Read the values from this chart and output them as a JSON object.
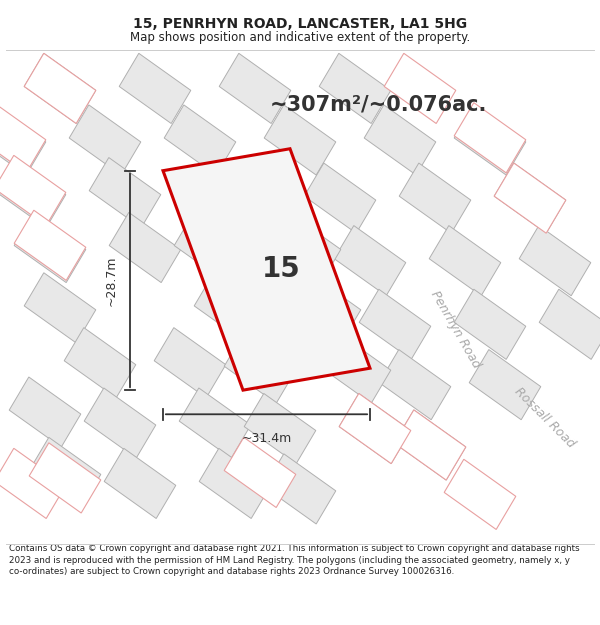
{
  "title_line1": "15, PENRHYN ROAD, LANCASTER, LA1 5HG",
  "title_line2": "Map shows position and indicative extent of the property.",
  "area_text": "~307m²/~0.076ac.",
  "property_number": "15",
  "dim_width": "~31.4m",
  "dim_height": "~28.7m",
  "footer_text": "Contains OS data © Crown copyright and database right 2021. This information is subject to Crown copyright and database rights 2023 and is reproduced with the permission of HM Land Registry. The polygons (including the associated geometry, namely x, y co-ordinates) are subject to Crown copyright and database rights 2023 Ordnance Survey 100026316.",
  "bg_color": "#ffffff",
  "map_bg_color": "#ffffff",
  "property_fill": "#f5f5f5",
  "property_edge": "#cc0000",
  "road_label1": "Penrhyn Road",
  "road_label2": "Rossall Road",
  "road_label1_rotation": -60,
  "road_label2_rotation": -45,
  "building_gray_fill": "#e8e8e8",
  "building_gray_edge": "#b0b0b0",
  "building_pink_fill": "#ffffff",
  "building_pink_edge": "#e8a0a0",
  "dim_line_color": "#333333",
  "text_color": "#333333",
  "title_color": "#222222",
  "footer_color": "#222222"
}
